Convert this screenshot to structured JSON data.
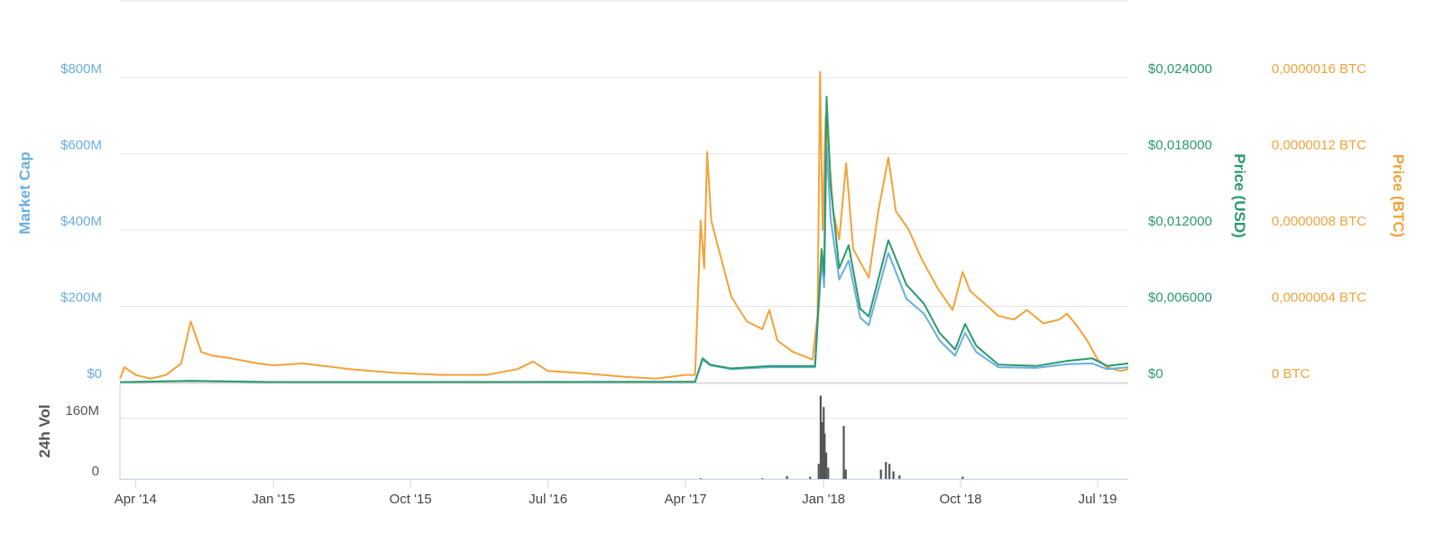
{
  "chart_data": {
    "type": "line",
    "x_unit": "date",
    "x_range": [
      "2014-03-01",
      "2019-08-31"
    ],
    "x_ticks": [
      {
        "date": "2014-04-01",
        "label": "Apr '14"
      },
      {
        "date": "2015-01-01",
        "label": "Jan '15"
      },
      {
        "date": "2015-10-01",
        "label": "Oct '15"
      },
      {
        "date": "2016-07-01",
        "label": "Jul '16"
      },
      {
        "date": "2017-04-01",
        "label": "Apr '17"
      },
      {
        "date": "2018-01-01",
        "label": "Jan '18"
      },
      {
        "date": "2018-10-01",
        "label": "Oct '18"
      },
      {
        "date": "2019-07-01",
        "label": "Jul '19"
      }
    ],
    "axes": {
      "market_cap": {
        "title": "Market Cap",
        "color": "#6aaee0",
        "ylim": [
          0,
          800000000
        ],
        "ticks": [
          {
            "value": 0,
            "label": "$0"
          },
          {
            "value": 200000000,
            "label": "$200M"
          },
          {
            "value": 400000000,
            "label": "$400M"
          },
          {
            "value": 600000000,
            "label": "$600M"
          },
          {
            "value": 800000000,
            "label": "$800M"
          }
        ]
      },
      "price_usd": {
        "title": "Price (USD)",
        "color": "#2a9a6e",
        "ylim": [
          0,
          0.024
        ],
        "ticks": [
          {
            "value": 0,
            "label": "$0"
          },
          {
            "value": 0.006,
            "label": "$0,006000"
          },
          {
            "value": 0.012,
            "label": "$0,012000"
          },
          {
            "value": 0.018,
            "label": "$0,018000"
          },
          {
            "value": 0.024,
            "label": "$0,024000"
          }
        ]
      },
      "price_btc": {
        "title": "Price (BTC)",
        "color": "#f2a33a",
        "ylim": [
          0,
          1.6e-06
        ],
        "ticks": [
          {
            "value": 0,
            "label": "0 BTC"
          },
          {
            "value": 4e-07,
            "label": "0,0000004 BTC"
          },
          {
            "value": 8e-07,
            "label": "0,0000008 BTC"
          },
          {
            "value": 1.2e-06,
            "label": "0,0000012 BTC"
          },
          {
            "value": 1.6e-06,
            "label": "0,0000016 BTC"
          }
        ]
      },
      "volume": {
        "title": "24h Vol",
        "color": "#666666",
        "ylim": [
          0,
          250000000
        ],
        "ticks": [
          {
            "value": 0,
            "label": "0"
          },
          {
            "value": 160000000,
            "label": "160M"
          }
        ]
      }
    },
    "grid": true,
    "legend": "none",
    "series": [
      {
        "axis": "price_btc",
        "color": "#f2a33a",
        "points": [
          [
            "2014-03-01",
            2e-08
          ],
          [
            "2014-03-10",
            8e-08
          ],
          [
            "2014-04-01",
            4e-08
          ],
          [
            "2014-05-01",
            2e-08
          ],
          [
            "2014-06-01",
            4e-08
          ],
          [
            "2014-07-01",
            1e-07
          ],
          [
            "2014-07-20",
            3.2e-07
          ],
          [
            "2014-08-10",
            1.6e-07
          ],
          [
            "2014-09-01",
            1.4e-07
          ],
          [
            "2014-10-01",
            1.3e-07
          ],
          [
            "2014-12-01",
            1e-07
          ],
          [
            "2015-01-01",
            9e-08
          ],
          [
            "2015-03-01",
            1e-07
          ],
          [
            "2015-06-01",
            7e-08
          ],
          [
            "2015-09-01",
            5e-08
          ],
          [
            "2015-12-01",
            4e-08
          ],
          [
            "2016-03-01",
            4e-08
          ],
          [
            "2016-05-01",
            7e-08
          ],
          [
            "2016-06-01",
            1.1e-07
          ],
          [
            "2016-07-01",
            6e-08
          ],
          [
            "2016-09-01",
            5e-08
          ],
          [
            "2016-12-01",
            3e-08
          ],
          [
            "2017-02-01",
            2e-08
          ],
          [
            "2017-04-01",
            4e-08
          ],
          [
            "2017-04-20",
            4e-08
          ],
          [
            "2017-05-01",
            8.5e-07
          ],
          [
            "2017-05-08",
            6e-07
          ],
          [
            "2017-05-14",
            1.21e-06
          ],
          [
            "2017-05-22",
            8.5e-07
          ],
          [
            "2017-06-01",
            7.5e-07
          ],
          [
            "2017-07-01",
            4.5e-07
          ],
          [
            "2017-08-01",
            3.2e-07
          ],
          [
            "2017-09-01",
            2.8e-07
          ],
          [
            "2017-09-15",
            3.8e-07
          ],
          [
            "2017-10-01",
            2.2e-07
          ],
          [
            "2017-11-01",
            1.6e-07
          ],
          [
            "2017-12-10",
            1.2e-07
          ],
          [
            "2017-12-20",
            3.5e-07
          ],
          [
            "2017-12-25",
            1.63e-06
          ],
          [
            "2017-12-30",
            8e-07
          ],
          [
            "2018-01-05",
            1.4e-06
          ],
          [
            "2018-01-12",
            1.2e-06
          ],
          [
            "2018-01-20",
            9e-07
          ],
          [
            "2018-02-01",
            7.5e-07
          ],
          [
            "2018-02-15",
            1.15e-06
          ],
          [
            "2018-03-01",
            7e-07
          ],
          [
            "2018-04-01",
            5.5e-07
          ],
          [
            "2018-04-20",
            9e-07
          ],
          [
            "2018-05-10",
            1.18e-06
          ],
          [
            "2018-05-25",
            9e-07
          ],
          [
            "2018-06-20",
            8e-07
          ],
          [
            "2018-07-15",
            6.5e-07
          ],
          [
            "2018-08-15",
            5e-07
          ],
          [
            "2018-09-15",
            3.8e-07
          ],
          [
            "2018-10-05",
            5.8e-07
          ],
          [
            "2018-10-20",
            4.8e-07
          ],
          [
            "2018-11-15",
            4.2e-07
          ],
          [
            "2018-12-15",
            3.5e-07
          ],
          [
            "2019-01-15",
            3.3e-07
          ],
          [
            "2019-02-10",
            3.8e-07
          ],
          [
            "2019-03-15",
            3.1e-07
          ],
          [
            "2019-04-15",
            3.3e-07
          ],
          [
            "2019-05-01",
            3.6e-07
          ],
          [
            "2019-05-20",
            3e-07
          ],
          [
            "2019-06-10",
            2.2e-07
          ],
          [
            "2019-07-01",
            1.2e-07
          ],
          [
            "2019-07-20",
            8e-08
          ],
          [
            "2019-08-15",
            6e-08
          ],
          [
            "2019-08-31",
            7e-08
          ]
        ]
      },
      {
        "axis": "market_cap",
        "color": "#6aaee0",
        "points": [
          [
            "2014-03-01",
            1000000
          ],
          [
            "2014-07-20",
            4000000
          ],
          [
            "2015-01-01",
            1000000
          ],
          [
            "2017-04-20",
            1500000
          ],
          [
            "2017-05-05",
            60000000
          ],
          [
            "2017-05-20",
            45000000
          ],
          [
            "2017-07-01",
            35000000
          ],
          [
            "2017-09-15",
            40000000
          ],
          [
            "2017-12-15",
            40000000
          ],
          [
            "2017-12-28",
            320000000
          ],
          [
            "2018-01-02",
            250000000
          ],
          [
            "2018-01-07",
            620000000
          ],
          [
            "2018-01-15",
            430000000
          ],
          [
            "2018-02-01",
            270000000
          ],
          [
            "2018-02-20",
            320000000
          ],
          [
            "2018-03-15",
            170000000
          ],
          [
            "2018-04-01",
            150000000
          ],
          [
            "2018-05-10",
            340000000
          ],
          [
            "2018-06-15",
            220000000
          ],
          [
            "2018-07-20",
            180000000
          ],
          [
            "2018-08-20",
            110000000
          ],
          [
            "2018-09-20",
            70000000
          ],
          [
            "2018-10-10",
            130000000
          ],
          [
            "2018-11-01",
            80000000
          ],
          [
            "2018-12-15",
            40000000
          ],
          [
            "2019-03-01",
            38000000
          ],
          [
            "2019-05-01",
            48000000
          ],
          [
            "2019-06-20",
            50000000
          ],
          [
            "2019-07-20",
            35000000
          ],
          [
            "2019-08-31",
            40000000
          ]
        ]
      },
      {
        "axis": "price_usd",
        "color": "#2a9a6e",
        "points": [
          [
            "2014-03-01",
            2e-05
          ],
          [
            "2014-07-20",
            0.00012
          ],
          [
            "2015-01-01",
            3e-05
          ],
          [
            "2017-04-20",
            5e-05
          ],
          [
            "2017-05-05",
            0.0019
          ],
          [
            "2017-05-20",
            0.0014
          ],
          [
            "2017-07-01",
            0.0011
          ],
          [
            "2017-09-15",
            0.0013
          ],
          [
            "2017-12-15",
            0.0013
          ],
          [
            "2017-12-28",
            0.0105
          ],
          [
            "2018-01-02",
            0.0085
          ],
          [
            "2018-01-07",
            0.0225
          ],
          [
            "2018-01-15",
            0.0155
          ],
          [
            "2018-02-01",
            0.009
          ],
          [
            "2018-02-20",
            0.0108
          ],
          [
            "2018-03-15",
            0.0058
          ],
          [
            "2018-04-01",
            0.0052
          ],
          [
            "2018-05-10",
            0.0112
          ],
          [
            "2018-06-15",
            0.0077
          ],
          [
            "2018-07-20",
            0.0062
          ],
          [
            "2018-08-20",
            0.0039
          ],
          [
            "2018-09-20",
            0.0026
          ],
          [
            "2018-10-10",
            0.0046
          ],
          [
            "2018-11-01",
            0.0029
          ],
          [
            "2018-12-15",
            0.0014
          ],
          [
            "2019-03-01",
            0.0013
          ],
          [
            "2019-05-01",
            0.0017
          ],
          [
            "2019-06-20",
            0.0019
          ],
          [
            "2019-07-20",
            0.0013
          ],
          [
            "2019-08-31",
            0.0015
          ]
        ]
      },
      {
        "axis": "volume",
        "color": "#555555",
        "type": "bar",
        "points": [
          [
            "2017-05-01",
            2000000
          ],
          [
            "2017-09-01",
            2000000
          ],
          [
            "2017-10-20",
            8000000
          ],
          [
            "2017-12-05",
            6000000
          ],
          [
            "2017-12-22",
            40000000
          ],
          [
            "2017-12-26",
            220000000
          ],
          [
            "2017-12-29",
            150000000
          ],
          [
            "2018-01-01",
            190000000
          ],
          [
            "2018-01-03",
            120000000
          ],
          [
            "2018-01-06",
            70000000
          ],
          [
            "2018-01-10",
            30000000
          ],
          [
            "2018-02-10",
            140000000
          ],
          [
            "2018-02-14",
            25000000
          ],
          [
            "2018-04-25",
            25000000
          ],
          [
            "2018-05-05",
            45000000
          ],
          [
            "2018-05-12",
            40000000
          ],
          [
            "2018-05-20",
            20000000
          ],
          [
            "2018-06-01",
            10000000
          ],
          [
            "2018-10-05",
            6000000
          ]
        ]
      }
    ]
  }
}
